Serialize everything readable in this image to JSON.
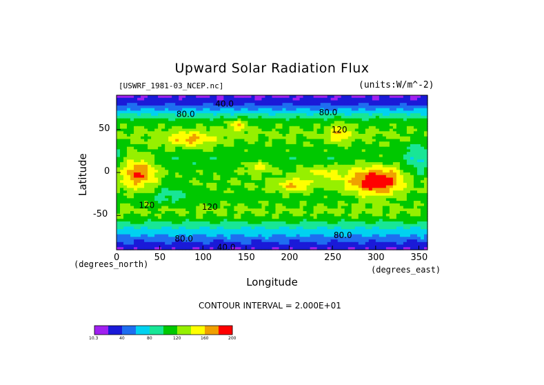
{
  "chart_data": {
    "type": "heatmap",
    "title": "Upward Solar Radiation Flux",
    "source_label": "[USWRF_1981-03_NCEP.nc]",
    "units_label": "(units:W/m^-2)",
    "xlabel": "Longitude",
    "ylabel": "Latitude",
    "x_units": "(degrees_east)",
    "y_units": "(degrees_north)",
    "contour_interval_label": "CONTOUR INTERVAL = 2.000E+01",
    "xlim": [
      0,
      360
    ],
    "ylim": [
      -90,
      90
    ],
    "x_ticks": [
      0,
      50,
      100,
      150,
      200,
      250,
      300,
      350
    ],
    "y_ticks": [
      50,
      0,
      -50
    ],
    "contour_labels": [
      {
        "text": "40.0",
        "lon": 125,
        "lat": 80
      },
      {
        "text": "80.0",
        "lon": 80,
        "lat": 68
      },
      {
        "text": "80.0",
        "lon": 245,
        "lat": 70
      },
      {
        "text": "120",
        "lon": 258,
        "lat": 50
      },
      {
        "text": "120",
        "lon": 108,
        "lat": -40
      },
      {
        "text": "120",
        "lon": 35,
        "lat": -38
      },
      {
        "text": "80.0",
        "lon": 78,
        "lat": -77
      },
      {
        "text": "80.0",
        "lon": 262,
        "lat": -73
      },
      {
        "text": "40.0",
        "lon": 127,
        "lat": -87
      }
    ],
    "colorbar": {
      "min_label": "10.3",
      "max_label": "200",
      "tick_labels": [
        "40",
        "80",
        "120",
        "160",
        "200"
      ],
      "levels": [
        10.3,
        20,
        40,
        60,
        80,
        100,
        120,
        140,
        160,
        180,
        200
      ],
      "colors": [
        "#a020f0",
        "#1a1ad8",
        "#1e6ef0",
        "#00d2f0",
        "#18e696",
        "#00c800",
        "#96f000",
        "#ffff00",
        "#f0a000",
        "#ff0000"
      ]
    },
    "field": {
      "zonal_profile": [
        {
          "lat": 90,
          "value": 15
        },
        {
          "lat": 80,
          "value": 35
        },
        {
          "lat": 70,
          "value": 75
        },
        {
          "lat": 60,
          "value": 110
        },
        {
          "lat": 45,
          "value": 125
        },
        {
          "lat": 30,
          "value": 115
        },
        {
          "lat": 15,
          "value": 105
        },
        {
          "lat": 0,
          "value": 115
        },
        {
          "lat": -15,
          "value": 120
        },
        {
          "lat": -30,
          "value": 110
        },
        {
          "lat": -45,
          "value": 125
        },
        {
          "lat": -55,
          "value": 110
        },
        {
          "lat": -65,
          "value": 80
        },
        {
          "lat": -75,
          "value": 55
        },
        {
          "lat": -85,
          "value": 30
        },
        {
          "lat": -90,
          "value": 20
        }
      ],
      "features": [
        {
          "lon": 25,
          "lat": 0,
          "sigma_lon": 15,
          "sigma_lat": 13,
          "amp": 65
        },
        {
          "lon": 300,
          "lat": -10,
          "sigma_lon": 22,
          "sigma_lat": 12,
          "amp": 85
        },
        {
          "lon": 205,
          "lat": -15,
          "sigma_lon": 14,
          "sigma_lat": 6,
          "amp": 40
        },
        {
          "lon": 165,
          "lat": 7,
          "sigma_lon": 12,
          "sigma_lat": 5,
          "amp": 35
        },
        {
          "lon": 258,
          "lat": 45,
          "sigma_lon": 8,
          "sigma_lat": 8,
          "amp": 40
        },
        {
          "lon": 85,
          "lat": 38,
          "sigma_lon": 20,
          "sigma_lat": 6,
          "amp": 45
        },
        {
          "lon": 140,
          "lat": 55,
          "sigma_lon": 8,
          "sigma_lat": 5,
          "amp": 40
        },
        {
          "lon": 350,
          "lat": 15,
          "sigma_lon": 10,
          "sigma_lat": 18,
          "amp": -30
        },
        {
          "lon": 240,
          "lat": 0,
          "sigma_lon": 18,
          "sigma_lat": 6,
          "amp": 30
        },
        {
          "lon": 60,
          "lat": -25,
          "sigma_lon": 15,
          "sigma_lat": 10,
          "amp": -20
        }
      ]
    }
  }
}
